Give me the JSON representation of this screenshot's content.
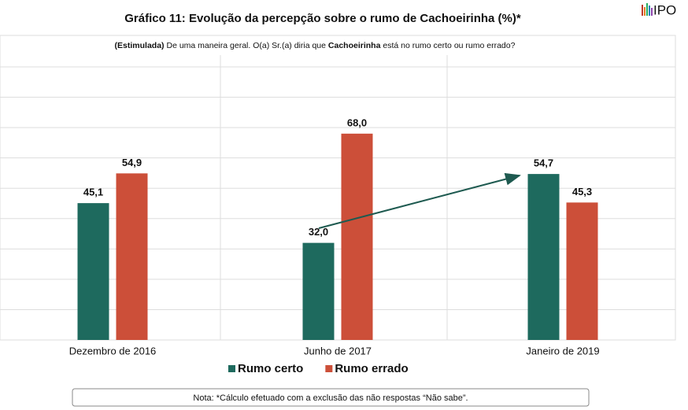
{
  "chart_data": {
    "type": "bar",
    "title": "Gráfico 11: Evolução da percepção sobre o rumo de Cachoeirinha (%)*",
    "subtitle": [
      {
        "text": "(Estimulada)",
        "bold": true
      },
      {
        "text": " De uma maneira geral. O(a) Sr.(a) diria que ",
        "bold": false
      },
      {
        "text": "Cachoeirinha",
        "bold": true
      },
      {
        "text": " está no rumo certo ou rumo errado?",
        "bold": false
      }
    ],
    "categories": [
      "Dezembro de 2016",
      "Junho de 2017",
      "Janeiro de 2019"
    ],
    "series": [
      {
        "name": "Rumo certo",
        "color": "#1e6a5e",
        "values": [
          45.1,
          32.0,
          54.7
        ],
        "value_labels": [
          "45,1",
          "32,0",
          "54,7"
        ]
      },
      {
        "name": "Rumo errado",
        "color": "#cc4f39",
        "values": [
          54.9,
          68.0,
          45.3
        ],
        "value_labels": [
          "54,9",
          "68,0",
          "45,3"
        ]
      }
    ],
    "ylim": [
      0,
      90
    ],
    "yticks": [
      0,
      10,
      20,
      30,
      40,
      50,
      60,
      70,
      80,
      90
    ],
    "grid": true,
    "note": "Nota: *Cálculo efetuado com a exclusão das não respostas “Não sabe”.",
    "logo": "IPO"
  }
}
